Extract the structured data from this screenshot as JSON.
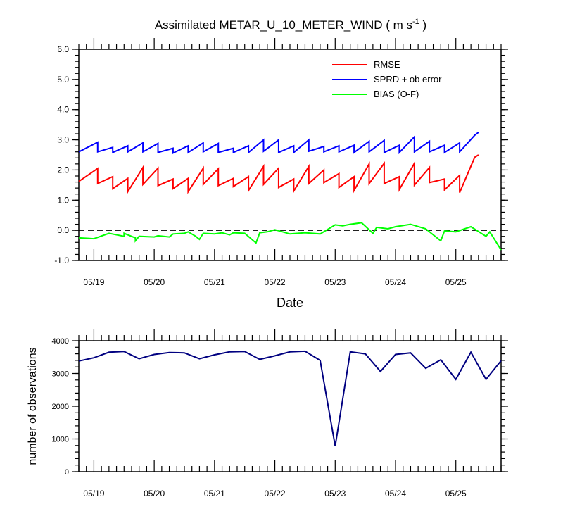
{
  "chart_data": [
    {
      "type": "line",
      "title": "Assimilated METAR_U_10_METER_WIND ( m s",
      "title_superscript": "-1",
      "title_close": " )",
      "xlabel": "Date",
      "ylabel": "",
      "ylim": [
        -1.0,
        6.0
      ],
      "yticks": [
        "-1.0",
        "0.0",
        "1.0",
        "2.0",
        "3.0",
        "4.0",
        "5.0",
        "6.0"
      ],
      "x_tick_labels": [
        "05/19",
        "05/20",
        "05/21",
        "05/22",
        "05/23",
        "05/24",
        "05/25"
      ],
      "zero_line": "dashed",
      "legend_position": "top-right",
      "series": [
        {
          "name": "RMSE",
          "color": "#ff0000",
          "points": [
            [
              0,
              1.62
            ],
            [
              2.5,
              2.05
            ],
            [
              2.5,
              1.55
            ],
            [
              4.5,
              1.78
            ],
            [
              4.5,
              1.38
            ],
            [
              6.5,
              1.72
            ],
            [
              6.5,
              1.28
            ],
            [
              8.5,
              2.08
            ],
            [
              8.5,
              1.52
            ],
            [
              10.5,
              2.06
            ],
            [
              10.5,
              1.48
            ],
            [
              12.5,
              1.7
            ],
            [
              12.5,
              1.38
            ],
            [
              14.5,
              1.72
            ],
            [
              14.5,
              1.28
            ],
            [
              16.5,
              2.06
            ],
            [
              16.5,
              1.52
            ],
            [
              18.5,
              2.04
            ],
            [
              18.5,
              1.48
            ],
            [
              20.5,
              1.72
            ],
            [
              20.5,
              1.45
            ],
            [
              22.5,
              1.78
            ],
            [
              22.5,
              1.32
            ],
            [
              24.5,
              2.12
            ],
            [
              24.5,
              1.52
            ],
            [
              26.5,
              2.06
            ],
            [
              26.5,
              1.42
            ],
            [
              28.5,
              1.7
            ],
            [
              28.5,
              1.3
            ],
            [
              30.5,
              2.12
            ],
            [
              30.5,
              1.55
            ],
            [
              32.5,
              2.0
            ],
            [
              32.5,
              1.58
            ],
            [
              34.5,
              1.88
            ],
            [
              34.5,
              1.42
            ],
            [
              36.5,
              1.78
            ],
            [
              36.5,
              1.32
            ],
            [
              38.5,
              2.2
            ],
            [
              38.5,
              1.55
            ],
            [
              40.5,
              2.22
            ],
            [
              40.5,
              1.55
            ],
            [
              42.5,
              1.78
            ],
            [
              42.5,
              1.35
            ],
            [
              44.5,
              2.22
            ],
            [
              44.5,
              1.5
            ],
            [
              46.5,
              2.08
            ],
            [
              46.5,
              1.58
            ],
            [
              48.5,
              1.7
            ],
            [
              48.5,
              1.34
            ],
            [
              50.5,
              1.82
            ],
            [
              50.5,
              1.25
            ],
            [
              52.5,
              2.42
            ],
            [
              53,
              2.5
            ]
          ]
        },
        {
          "name": "SPRD + ob error",
          "color": "#0000ff",
          "points": [
            [
              0,
              2.6
            ],
            [
              2.5,
              2.92
            ],
            [
              2.5,
              2.6
            ],
            [
              4.5,
              2.75
            ],
            [
              4.5,
              2.58
            ],
            [
              6.5,
              2.8
            ],
            [
              6.5,
              2.6
            ],
            [
              8.5,
              2.9
            ],
            [
              8.5,
              2.6
            ],
            [
              10.5,
              2.88
            ],
            [
              10.5,
              2.58
            ],
            [
              12.5,
              2.72
            ],
            [
              12.5,
              2.56
            ],
            [
              14.5,
              2.8
            ],
            [
              14.5,
              2.58
            ],
            [
              16.5,
              2.9
            ],
            [
              16.5,
              2.6
            ],
            [
              18.5,
              2.88
            ],
            [
              18.5,
              2.58
            ],
            [
              20.5,
              2.72
            ],
            [
              20.5,
              2.58
            ],
            [
              22.5,
              2.8
            ],
            [
              22.5,
              2.58
            ],
            [
              24.5,
              3.0
            ],
            [
              24.5,
              2.62
            ],
            [
              26.5,
              3.0
            ],
            [
              26.5,
              2.58
            ],
            [
              28.5,
              2.8
            ],
            [
              28.5,
              2.58
            ],
            [
              30.5,
              3.0
            ],
            [
              30.5,
              2.62
            ],
            [
              32.5,
              2.78
            ],
            [
              32.5,
              2.6
            ],
            [
              34.5,
              2.8
            ],
            [
              34.5,
              2.6
            ],
            [
              36.5,
              2.82
            ],
            [
              36.5,
              2.58
            ],
            [
              38.5,
              2.95
            ],
            [
              38.5,
              2.6
            ],
            [
              40.5,
              2.98
            ],
            [
              40.5,
              2.58
            ],
            [
              42.5,
              2.82
            ],
            [
              42.5,
              2.58
            ],
            [
              44.5,
              3.1
            ],
            [
              44.5,
              2.6
            ],
            [
              46.5,
              2.95
            ],
            [
              46.5,
              2.6
            ],
            [
              48.5,
              2.82
            ],
            [
              48.5,
              2.58
            ],
            [
              50.5,
              2.9
            ],
            [
              50.5,
              2.6
            ],
            [
              52.5,
              3.15
            ],
            [
              53,
              3.25
            ]
          ]
        },
        {
          "name": "BIAS (O-F)",
          "color": "#00ff00",
          "points": [
            [
              0,
              -0.25
            ],
            [
              2,
              -0.28
            ],
            [
              4,
              -0.1
            ],
            [
              6,
              -0.2
            ],
            [
              6,
              -0.1
            ],
            [
              7.5,
              -0.25
            ],
            [
              7.5,
              -0.35
            ],
            [
              8,
              -0.2
            ],
            [
              10,
              -0.22
            ],
            [
              10.5,
              -0.18
            ],
            [
              12,
              -0.22
            ],
            [
              12.5,
              -0.12
            ],
            [
              14,
              -0.1
            ],
            [
              14.5,
              -0.05
            ],
            [
              15.5,
              -0.2
            ],
            [
              16,
              -0.3
            ],
            [
              16.5,
              -0.1
            ],
            [
              18,
              -0.12
            ],
            [
              19,
              -0.08
            ],
            [
              20,
              -0.15
            ],
            [
              20.5,
              -0.08
            ],
            [
              22,
              -0.1
            ],
            [
              23.5,
              -0.42
            ],
            [
              24,
              -0.08
            ],
            [
              25,
              -0.05
            ],
            [
              26,
              0.02
            ],
            [
              28,
              -0.12
            ],
            [
              30,
              -0.08
            ],
            [
              32,
              -0.12
            ],
            [
              34,
              0.18
            ],
            [
              35,
              0.15
            ],
            [
              36,
              0.2
            ],
            [
              37.5,
              0.25
            ],
            [
              39,
              -0.1
            ],
            [
              39.5,
              0.1
            ],
            [
              41,
              0.05
            ],
            [
              42,
              0.12
            ],
            [
              44,
              0.2
            ],
            [
              46,
              0.05
            ],
            [
              48,
              -0.35
            ],
            [
              48.5,
              -0.02
            ],
            [
              50,
              -0.05
            ],
            [
              52,
              0.12
            ],
            [
              54,
              -0.2
            ],
            [
              54.5,
              -0.05
            ],
            [
              56,
              -0.65
            ]
          ]
        }
      ]
    },
    {
      "type": "line",
      "title": "",
      "xlabel": "",
      "ylabel": "number of observations",
      "ylim": [
        0,
        4000
      ],
      "yticks": [
        "0",
        "1000",
        "2000",
        "3000",
        "4000"
      ],
      "x_tick_labels": [
        "05/19",
        "05/20",
        "05/21",
        "05/22",
        "05/23",
        "05/24",
        "05/25"
      ],
      "series": [
        {
          "name": "",
          "color": "#000080",
          "points": [
            [
              0,
              3380
            ],
            [
              2,
              3480
            ],
            [
              4,
              3650
            ],
            [
              6,
              3670
            ],
            [
              8,
              3450
            ],
            [
              10,
              3580
            ],
            [
              12,
              3640
            ],
            [
              14,
              3630
            ],
            [
              16,
              3450
            ],
            [
              18,
              3570
            ],
            [
              20,
              3660
            ],
            [
              22,
              3670
            ],
            [
              24,
              3430
            ],
            [
              26,
              3540
            ],
            [
              28,
              3660
            ],
            [
              30,
              3680
            ],
            [
              32,
              3400
            ],
            [
              34,
              780
            ],
            [
              36,
              3660
            ],
            [
              38,
              3600
            ],
            [
              40,
              3060
            ],
            [
              42,
              3580
            ],
            [
              44,
              3630
            ],
            [
              46,
              3160
            ],
            [
              48,
              3420
            ],
            [
              50,
              2820
            ],
            [
              52,
              3650
            ],
            [
              54,
              2820
            ],
            [
              56,
              3390
            ]
          ]
        }
      ]
    }
  ]
}
